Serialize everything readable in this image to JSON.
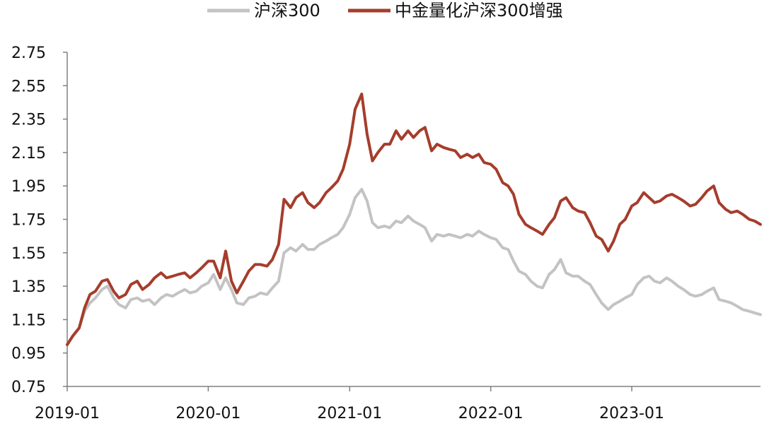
{
  "colors": {
    "hs300": "#c3c3c3",
    "enhanced": "#a53d2c",
    "axis": "#808080",
    "text": "#111111"
  },
  "chart_data": {
    "type": "line",
    "legend": {
      "position": "top",
      "entries": [
        "沪深300",
        "中金量化沪深300增强"
      ]
    },
    "grid": false,
    "xlim": [
      "2019-01-01",
      "2023-11-30"
    ],
    "ylim": [
      0.75,
      2.75
    ],
    "yticks": [
      "0.75",
      "0.95",
      "1.15",
      "1.35",
      "1.55",
      "1.75",
      "1.95",
      "2.15",
      "2.35",
      "2.55",
      "2.75"
    ],
    "xticks": [
      "2019-01",
      "2020-01",
      "2021-01",
      "2022-01",
      "2023-01"
    ],
    "series": [
      {
        "name": "沪深300",
        "color": "#c3c3c3",
        "x": [
          "2019-01-01",
          "2019-01-15",
          "2019-02-01",
          "2019-02-15",
          "2019-03-01",
          "2019-03-15",
          "2019-04-01",
          "2019-04-15",
          "2019-05-01",
          "2019-05-15",
          "2019-06-01",
          "2019-06-15",
          "2019-07-01",
          "2019-07-15",
          "2019-08-01",
          "2019-08-15",
          "2019-09-01",
          "2019-09-15",
          "2019-10-01",
          "2019-10-15",
          "2019-11-01",
          "2019-11-15",
          "2019-12-01",
          "2019-12-15",
          "2020-01-01",
          "2020-01-15",
          "2020-02-01",
          "2020-02-15",
          "2020-03-01",
          "2020-03-15",
          "2020-04-01",
          "2020-04-15",
          "2020-05-01",
          "2020-05-15",
          "2020-06-01",
          "2020-06-15",
          "2020-07-01",
          "2020-07-15",
          "2020-08-01",
          "2020-08-15",
          "2020-09-01",
          "2020-09-15",
          "2020-10-01",
          "2020-10-15",
          "2020-11-01",
          "2020-11-15",
          "2020-12-01",
          "2020-12-15",
          "2021-01-01",
          "2021-01-15",
          "2021-02-01",
          "2021-02-15",
          "2021-03-01",
          "2021-03-15",
          "2021-04-01",
          "2021-04-15",
          "2021-05-01",
          "2021-05-15",
          "2021-06-01",
          "2021-06-15",
          "2021-07-01",
          "2021-07-15",
          "2021-08-01",
          "2021-08-15",
          "2021-09-01",
          "2021-09-15",
          "2021-10-01",
          "2021-10-15",
          "2021-11-01",
          "2021-11-15",
          "2021-12-01",
          "2021-12-15",
          "2022-01-01",
          "2022-01-15",
          "2022-02-01",
          "2022-02-15",
          "2022-03-01",
          "2022-03-15",
          "2022-04-01",
          "2022-04-15",
          "2022-05-01",
          "2022-05-15",
          "2022-06-01",
          "2022-06-15",
          "2022-07-01",
          "2022-07-15",
          "2022-08-01",
          "2022-08-15",
          "2022-09-01",
          "2022-09-15",
          "2022-10-01",
          "2022-10-15",
          "2022-11-01",
          "2022-11-15",
          "2022-12-01",
          "2022-12-15",
          "2023-01-01",
          "2023-01-15",
          "2023-02-01",
          "2023-02-15",
          "2023-03-01",
          "2023-03-15",
          "2023-04-01",
          "2023-04-15",
          "2023-05-01",
          "2023-05-15",
          "2023-06-01",
          "2023-06-15",
          "2023-07-01",
          "2023-07-15",
          "2023-08-01",
          "2023-08-15",
          "2023-09-01",
          "2023-09-15",
          "2023-10-01",
          "2023-10-15",
          "2023-11-01",
          "2023-11-15",
          "2023-11-30"
        ],
        "values": [
          1.0,
          1.05,
          1.1,
          1.2,
          1.25,
          1.28,
          1.33,
          1.35,
          1.28,
          1.24,
          1.22,
          1.27,
          1.28,
          1.26,
          1.27,
          1.24,
          1.28,
          1.3,
          1.29,
          1.31,
          1.33,
          1.31,
          1.32,
          1.35,
          1.37,
          1.42,
          1.33,
          1.4,
          1.33,
          1.25,
          1.24,
          1.28,
          1.29,
          1.31,
          1.3,
          1.34,
          1.38,
          1.55,
          1.58,
          1.56,
          1.6,
          1.57,
          1.57,
          1.6,
          1.62,
          1.64,
          1.66,
          1.7,
          1.78,
          1.88,
          1.93,
          1.86,
          1.73,
          1.7,
          1.71,
          1.7,
          1.74,
          1.73,
          1.77,
          1.74,
          1.72,
          1.7,
          1.62,
          1.66,
          1.65,
          1.66,
          1.65,
          1.64,
          1.66,
          1.65,
          1.68,
          1.66,
          1.64,
          1.63,
          1.58,
          1.57,
          1.5,
          1.44,
          1.42,
          1.38,
          1.35,
          1.34,
          1.42,
          1.45,
          1.51,
          1.43,
          1.41,
          1.41,
          1.38,
          1.36,
          1.3,
          1.25,
          1.21,
          1.24,
          1.26,
          1.28,
          1.3,
          1.36,
          1.4,
          1.41,
          1.38,
          1.37,
          1.4,
          1.38,
          1.35,
          1.33,
          1.3,
          1.29,
          1.3,
          1.32,
          1.34,
          1.27,
          1.26,
          1.25,
          1.23,
          1.21,
          1.2,
          1.19,
          1.18
        ]
      },
      {
        "name": "中金量化沪深300增强",
        "color": "#a53d2c",
        "x": [
          "2019-01-01",
          "2019-01-15",
          "2019-02-01",
          "2019-02-15",
          "2019-03-01",
          "2019-03-15",
          "2019-04-01",
          "2019-04-15",
          "2019-05-01",
          "2019-05-15",
          "2019-06-01",
          "2019-06-15",
          "2019-07-01",
          "2019-07-15",
          "2019-08-01",
          "2019-08-15",
          "2019-09-01",
          "2019-09-15",
          "2019-10-01",
          "2019-10-15",
          "2019-11-01",
          "2019-11-15",
          "2019-12-01",
          "2019-12-15",
          "2020-01-01",
          "2020-01-15",
          "2020-02-01",
          "2020-02-15",
          "2020-03-01",
          "2020-03-15",
          "2020-04-01",
          "2020-04-15",
          "2020-05-01",
          "2020-05-15",
          "2020-06-01",
          "2020-06-15",
          "2020-07-01",
          "2020-07-15",
          "2020-08-01",
          "2020-08-15",
          "2020-09-01",
          "2020-09-15",
          "2020-10-01",
          "2020-10-15",
          "2020-11-01",
          "2020-11-15",
          "2020-12-01",
          "2020-12-15",
          "2021-01-01",
          "2021-01-15",
          "2021-02-01",
          "2021-02-15",
          "2021-03-01",
          "2021-03-15",
          "2021-04-01",
          "2021-04-15",
          "2021-05-01",
          "2021-05-15",
          "2021-06-01",
          "2021-06-15",
          "2021-07-01",
          "2021-07-15",
          "2021-08-01",
          "2021-08-15",
          "2021-09-01",
          "2021-09-15",
          "2021-10-01",
          "2021-10-15",
          "2021-11-01",
          "2021-11-15",
          "2021-12-01",
          "2021-12-15",
          "2022-01-01",
          "2022-01-15",
          "2022-02-01",
          "2022-02-15",
          "2022-03-01",
          "2022-03-15",
          "2022-04-01",
          "2022-04-15",
          "2022-05-01",
          "2022-05-15",
          "2022-06-01",
          "2022-06-15",
          "2022-07-01",
          "2022-07-15",
          "2022-08-01",
          "2022-08-15",
          "2022-09-01",
          "2022-09-15",
          "2022-10-01",
          "2022-10-15",
          "2022-11-01",
          "2022-11-15",
          "2022-12-01",
          "2022-12-15",
          "2023-01-01",
          "2023-01-15",
          "2023-02-01",
          "2023-02-15",
          "2023-03-01",
          "2023-03-15",
          "2023-04-01",
          "2023-04-15",
          "2023-05-01",
          "2023-05-15",
          "2023-06-01",
          "2023-06-15",
          "2023-07-01",
          "2023-07-15",
          "2023-08-01",
          "2023-08-15",
          "2023-09-01",
          "2023-09-15",
          "2023-10-01",
          "2023-10-15",
          "2023-11-01",
          "2023-11-15",
          "2023-11-30"
        ],
        "values": [
          1.0,
          1.05,
          1.1,
          1.22,
          1.3,
          1.32,
          1.38,
          1.39,
          1.32,
          1.28,
          1.3,
          1.36,
          1.38,
          1.33,
          1.36,
          1.4,
          1.43,
          1.4,
          1.41,
          1.42,
          1.43,
          1.4,
          1.43,
          1.46,
          1.5,
          1.5,
          1.4,
          1.56,
          1.38,
          1.31,
          1.38,
          1.44,
          1.48,
          1.48,
          1.47,
          1.51,
          1.6,
          1.87,
          1.82,
          1.88,
          1.91,
          1.85,
          1.82,
          1.85,
          1.91,
          1.94,
          1.98,
          2.05,
          2.2,
          2.41,
          2.5,
          2.26,
          2.1,
          2.15,
          2.2,
          2.2,
          2.28,
          2.23,
          2.28,
          2.24,
          2.28,
          2.3,
          2.16,
          2.2,
          2.18,
          2.17,
          2.16,
          2.12,
          2.14,
          2.12,
          2.14,
          2.09,
          2.08,
          2.05,
          1.97,
          1.95,
          1.9,
          1.78,
          1.72,
          1.7,
          1.68,
          1.66,
          1.72,
          1.76,
          1.86,
          1.88,
          1.82,
          1.8,
          1.79,
          1.73,
          1.65,
          1.63,
          1.56,
          1.62,
          1.72,
          1.75,
          1.83,
          1.85,
          1.91,
          1.88,
          1.85,
          1.86,
          1.89,
          1.9,
          1.88,
          1.86,
          1.83,
          1.84,
          1.88,
          1.92,
          1.95,
          1.85,
          1.81,
          1.79,
          1.8,
          1.78,
          1.75,
          1.74,
          1.72
        ]
      }
    ]
  }
}
